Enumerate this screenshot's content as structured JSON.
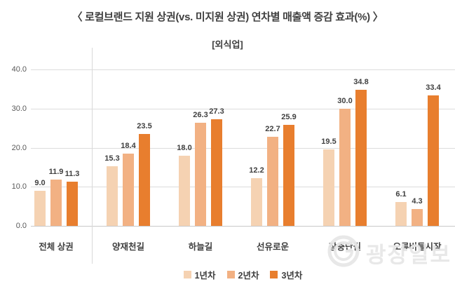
{
  "header": {
    "title": "〈 로컬브랜드 지원 상권(vs. 미지원 상권) 연차별 매출액 증감 효과(%) 〉",
    "subtitle": "[외식업]"
  },
  "watermark": {
    "text": "광장일보",
    "icon": "globe-g-logo"
  },
  "chart_data": {
    "type": "bar",
    "title": "〈 로컬브랜드 지원 상권(vs. 미지원 상권) 연차별 매출액 증감 효과(%) 〉",
    "subtitle": "[외식업]",
    "categories": [
      "전체 상권",
      "양재천길",
      "하늘길",
      "선유로운",
      "장충단길",
      "오류버들시장"
    ],
    "series": [
      {
        "name": "1년차",
        "color": "#F5D2B2",
        "values": [
          9.0,
          15.3,
          18.0,
          12.2,
          19.5,
          6.1
        ]
      },
      {
        "name": "2년차",
        "color": "#F2B183",
        "values": [
          11.9,
          18.4,
          26.3,
          22.7,
          30.0,
          4.3
        ]
      },
      {
        "name": "3년차",
        "color": "#E87E2E",
        "values": [
          11.3,
          23.5,
          27.3,
          25.9,
          34.8,
          33.4
        ]
      }
    ],
    "ylim": [
      0,
      40
    ],
    "ytick_values": [
      0,
      10,
      20,
      30,
      40
    ],
    "ytick_labels": [
      "0.0",
      "10.0",
      "20.0",
      "30.0",
      "40.0"
    ],
    "grid": true,
    "value_labels": true,
    "legend_position": "bottom",
    "separator_after_category_index": 0
  }
}
